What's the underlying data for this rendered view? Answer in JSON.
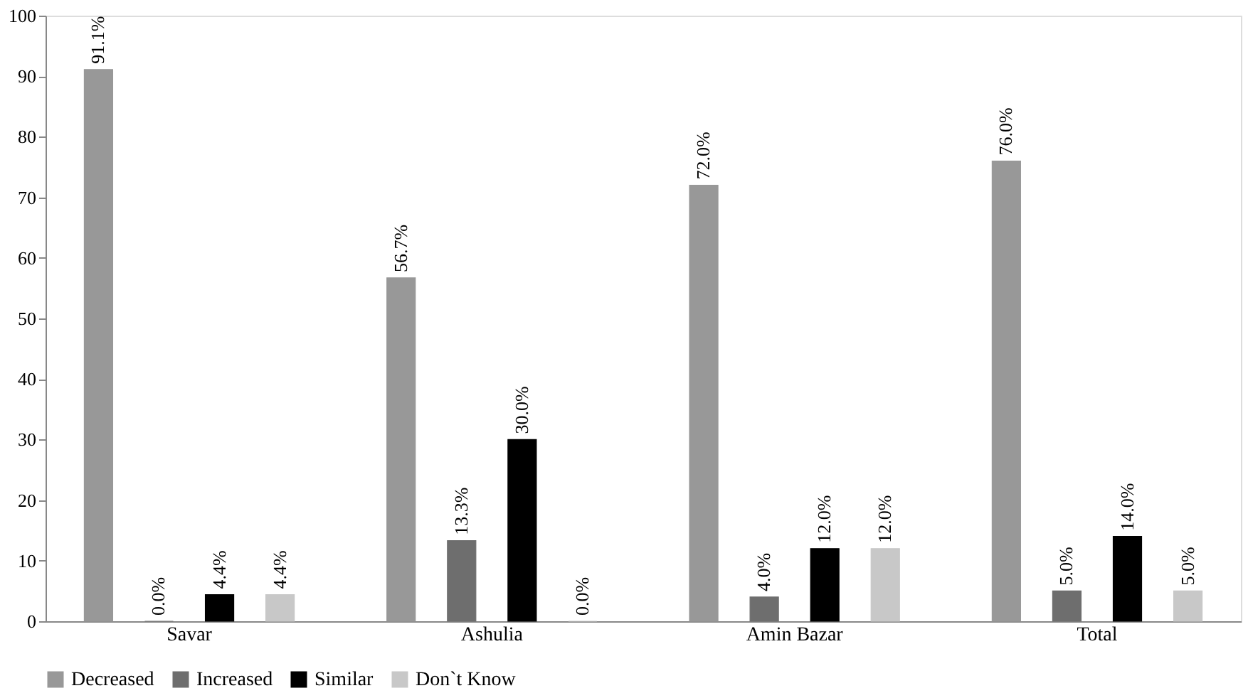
{
  "chart_data": {
    "type": "bar",
    "categories": [
      "Savar",
      "Ashulia",
      "Amin Bazar",
      "Total"
    ],
    "series": [
      {
        "name": "Decreased",
        "color": "#989898",
        "values": [
          91.1,
          56.7,
          72.0,
          76.0
        ],
        "value_labels": [
          "91.1%",
          "56.7%",
          "72.0%",
          "76.0%"
        ]
      },
      {
        "name": "Increased",
        "color": "#6e6e6e",
        "values": [
          0.0,
          13.3,
          4.0,
          5.0
        ],
        "value_labels": [
          "0.0%",
          "13.3%",
          "4.0%",
          "5.0%"
        ]
      },
      {
        "name": "Similar",
        "color": "#000000",
        "values": [
          4.4,
          30.0,
          12.0,
          14.0
        ],
        "value_labels": [
          "4.4%",
          "30.0%",
          "12.0%",
          "14.0%"
        ]
      },
      {
        "name": "Don`t Know",
        "color": "#c8c8c8",
        "values": [
          4.4,
          0.0,
          12.0,
          5.0
        ],
        "value_labels": [
          "4.4%",
          "0.0%",
          "12.0%",
          "5.0%"
        ]
      }
    ],
    "ylim": [
      0,
      100
    ],
    "yticks": [
      0,
      10,
      20,
      30,
      40,
      50,
      60,
      70,
      80,
      90,
      100
    ],
    "grid": false,
    "legend": "bottom"
  }
}
